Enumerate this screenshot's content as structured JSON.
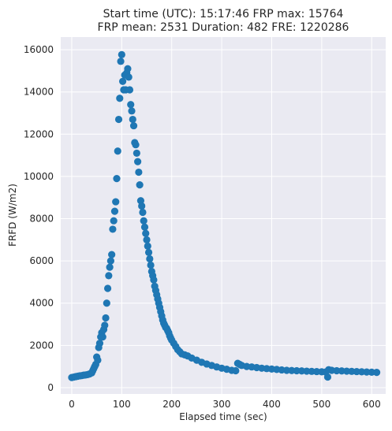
{
  "chart_data": {
    "type": "scatter",
    "title_line1": "Start time (UTC): 15:17:46 FRP max: 15764",
    "title_line2": "FRP mean: 2531 Duration: 482 FRE: 1220286",
    "xlabel": "Elapsed time (sec)",
    "ylabel": "FRFD (W/m2)",
    "xlim": [
      -22,
      628
    ],
    "ylim": [
      -300,
      16600
    ],
    "xticks": [
      0,
      100,
      200,
      300,
      400,
      500,
      600
    ],
    "yticks": [
      0,
      2000,
      4000,
      6000,
      8000,
      10000,
      12000,
      14000,
      16000
    ],
    "grid": true,
    "legend": "none",
    "marker_color": "#1f77b4",
    "points": [
      [
        0,
        480
      ],
      [
        4,
        500
      ],
      [
        8,
        520
      ],
      [
        12,
        540
      ],
      [
        16,
        560
      ],
      [
        20,
        570
      ],
      [
        24,
        590
      ],
      [
        28,
        600
      ],
      [
        32,
        620
      ],
      [
        36,
        650
      ],
      [
        40,
        700
      ],
      [
        42,
        800
      ],
      [
        44,
        900
      ],
      [
        46,
        1000
      ],
      [
        48,
        1100
      ],
      [
        50,
        1450
      ],
      [
        52,
        1300
      ],
      [
        54,
        1900
      ],
      [
        56,
        2100
      ],
      [
        58,
        2400
      ],
      [
        60,
        2600
      ],
      [
        62,
        2400
      ],
      [
        64,
        2750
      ],
      [
        66,
        2950
      ],
      [
        68,
        3300
      ],
      [
        70,
        4000
      ],
      [
        72,
        4700
      ],
      [
        74,
        5300
      ],
      [
        76,
        5700
      ],
      [
        78,
        6000
      ],
      [
        80,
        6300
      ],
      [
        82,
        7500
      ],
      [
        84,
        7900
      ],
      [
        86,
        8350
      ],
      [
        88,
        8800
      ],
      [
        90,
        9900
      ],
      [
        92,
        11200
      ],
      [
        94,
        12700
      ],
      [
        96,
        13700
      ],
      [
        98,
        15450
      ],
      [
        100,
        15764
      ],
      [
        102,
        14500
      ],
      [
        104,
        14100
      ],
      [
        106,
        14800
      ],
      [
        108,
        14100
      ],
      [
        110,
        14900
      ],
      [
        112,
        15100
      ],
      [
        114,
        14700
      ],
      [
        116,
        14100
      ],
      [
        118,
        13400
      ],
      [
        120,
        13100
      ],
      [
        122,
        12700
      ],
      [
        124,
        12400
      ],
      [
        126,
        11600
      ],
      [
        128,
        11500
      ],
      [
        130,
        11100
      ],
      [
        132,
        10700
      ],
      [
        134,
        10200
      ],
      [
        136,
        9600
      ],
      [
        138,
        8850
      ],
      [
        140,
        8600
      ],
      [
        142,
        8300
      ],
      [
        144,
        7900
      ],
      [
        146,
        7600
      ],
      [
        148,
        7300
      ],
      [
        150,
        7000
      ],
      [
        152,
        6700
      ],
      [
        154,
        6400
      ],
      [
        156,
        6100
      ],
      [
        158,
        5800
      ],
      [
        160,
        5500
      ],
      [
        162,
        5300
      ],
      [
        164,
        5100
      ],
      [
        166,
        4800
      ],
      [
        168,
        4600
      ],
      [
        170,
        4400
      ],
      [
        172,
        4200
      ],
      [
        174,
        4000
      ],
      [
        176,
        3800
      ],
      [
        178,
        3600
      ],
      [
        180,
        3400
      ],
      [
        182,
        3200
      ],
      [
        184,
        3050
      ],
      [
        186,
        2950
      ],
      [
        188,
        2850
      ],
      [
        190,
        2800
      ],
      [
        192,
        2700
      ],
      [
        194,
        2600
      ],
      [
        196,
        2450
      ],
      [
        198,
        2350
      ],
      [
        200,
        2250
      ],
      [
        204,
        2100
      ],
      [
        208,
        1950
      ],
      [
        212,
        1800
      ],
      [
        216,
        1700
      ],
      [
        220,
        1600
      ],
      [
        226,
        1550
      ],
      [
        232,
        1500
      ],
      [
        240,
        1400
      ],
      [
        250,
        1300
      ],
      [
        260,
        1200
      ],
      [
        270,
        1120
      ],
      [
        280,
        1050
      ],
      [
        290,
        980
      ],
      [
        300,
        920
      ],
      [
        310,
        870
      ],
      [
        320,
        820
      ],
      [
        328,
        800
      ],
      [
        332,
        1150
      ],
      [
        336,
        1100
      ],
      [
        340,
        1050
      ],
      [
        350,
        1000
      ],
      [
        360,
        980
      ],
      [
        370,
        950
      ],
      [
        380,
        920
      ],
      [
        390,
        900
      ],
      [
        400,
        880
      ],
      [
        410,
        860
      ],
      [
        420,
        840
      ],
      [
        430,
        820
      ],
      [
        440,
        810
      ],
      [
        450,
        800
      ],
      [
        460,
        790
      ],
      [
        470,
        780
      ],
      [
        480,
        770
      ],
      [
        490,
        760
      ],
      [
        500,
        750
      ],
      [
        508,
        740
      ],
      [
        512,
        500
      ],
      [
        514,
        850
      ],
      [
        520,
        820
      ],
      [
        530,
        800
      ],
      [
        540,
        790
      ],
      [
        550,
        780
      ],
      [
        560,
        770
      ],
      [
        570,
        760
      ],
      [
        580,
        750
      ],
      [
        590,
        740
      ],
      [
        600,
        730
      ],
      [
        610,
        720
      ]
    ]
  }
}
